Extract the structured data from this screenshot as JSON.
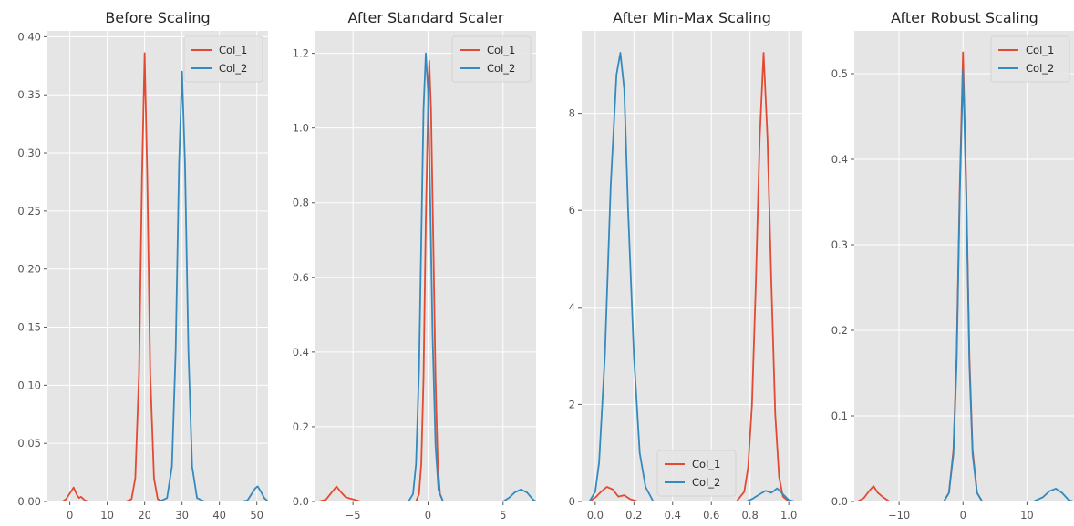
{
  "colors": {
    "col1": "#E24A33",
    "col2": "#348ABD",
    "axes_bg": "#E5E5E5",
    "grid": "#FFFFFF",
    "tick_text": "#555555"
  },
  "chart_data": [
    {
      "type": "line",
      "title": "Before Scaling",
      "xlim": [
        -6,
        53
      ],
      "ylim": [
        0,
        0.405
      ],
      "xticks": [
        0,
        10,
        20,
        30,
        40,
        50
      ],
      "xtick_labels": [
        "0",
        "10",
        "20",
        "30",
        "40",
        "50"
      ],
      "yticks": [
        0,
        0.05,
        0.1,
        0.15,
        0.2,
        0.25,
        0.3,
        0.35,
        0.4
      ],
      "ytick_labels": [
        "0.00",
        "0.05",
        "0.10",
        "0.15",
        "0.20",
        "0.25",
        "0.30",
        "0.35",
        "0.40"
      ],
      "grid": true,
      "legend_position": "top-right",
      "series": [
        {
          "name": "Col_1",
          "color": "#E24A33",
          "points": [
            [
              -2,
              0
            ],
            [
              -1,
              0.002
            ],
            [
              0,
              0.007
            ],
            [
              1,
              0.012
            ],
            [
              2,
              0.005
            ],
            [
              2.5,
              0.003
            ],
            [
              3,
              0.004
            ],
            [
              4,
              0.001
            ],
            [
              5,
              0
            ],
            [
              15,
              0
            ],
            [
              16.5,
              0.002
            ],
            [
              17.5,
              0.02
            ],
            [
              18.5,
              0.11
            ],
            [
              19.3,
              0.28
            ],
            [
              20,
              0.386
            ],
            [
              20.7,
              0.28
            ],
            [
              21.5,
              0.11
            ],
            [
              22.5,
              0.02
            ],
            [
              23.5,
              0.002
            ],
            [
              25,
              0
            ]
          ]
        },
        {
          "name": "Col_2",
          "color": "#348ABD",
          "points": [
            [
              24,
              0
            ],
            [
              26,
              0.003
            ],
            [
              27.3,
              0.03
            ],
            [
              28.3,
              0.13
            ],
            [
              29.2,
              0.29
            ],
            [
              30,
              0.37
            ],
            [
              30.8,
              0.29
            ],
            [
              31.7,
              0.13
            ],
            [
              32.7,
              0.03
            ],
            [
              34,
              0.003
            ],
            [
              36,
              0
            ],
            [
              46,
              0
            ],
            [
              47.5,
              0.001
            ],
            [
              48.5,
              0.006
            ],
            [
              49.5,
              0.011
            ],
            [
              50.2,
              0.013
            ],
            [
              51,
              0.009
            ],
            [
              52,
              0.003
            ],
            [
              53,
              0
            ]
          ]
        }
      ]
    },
    {
      "type": "line",
      "title": "After Standard Scaler",
      "xlim": [
        -7.5,
        7.2
      ],
      "ylim": [
        0,
        1.26
      ],
      "xticks": [
        -5,
        0,
        5
      ],
      "xtick_labels": [
        "−5",
        "0",
        "5"
      ],
      "yticks": [
        0,
        0.2,
        0.4,
        0.6,
        0.8,
        1.0,
        1.2
      ],
      "ytick_labels": [
        "0.0",
        "0.2",
        "0.4",
        "0.6",
        "0.8",
        "1.0",
        "1.2"
      ],
      "grid": true,
      "legend_position": "top-right",
      "series": [
        {
          "name": "Col_1",
          "color": "#E24A33",
          "points": [
            [
              -7.3,
              0
            ],
            [
              -6.8,
              0.005
            ],
            [
              -6.4,
              0.025
            ],
            [
              -6.1,
              0.04
            ],
            [
              -5.8,
              0.025
            ],
            [
              -5.5,
              0.012
            ],
            [
              -5.2,
              0.008
            ],
            [
              -4.9,
              0.005
            ],
            [
              -4.5,
              0
            ],
            [
              -0.8,
              0
            ],
            [
              -0.6,
              0.02
            ],
            [
              -0.45,
              0.1
            ],
            [
              -0.3,
              0.33
            ],
            [
              -0.15,
              0.75
            ],
            [
              0,
              1.05
            ],
            [
              0.08,
              1.18
            ],
            [
              0.2,
              1.05
            ],
            [
              0.35,
              0.7
            ],
            [
              0.5,
              0.33
            ],
            [
              0.65,
              0.1
            ],
            [
              0.8,
              0.02
            ],
            [
              1.0,
              0
            ]
          ]
        },
        {
          "name": "Col_2",
          "color": "#348ABD",
          "points": [
            [
              -1.3,
              0
            ],
            [
              -1.0,
              0.02
            ],
            [
              -0.8,
              0.1
            ],
            [
              -0.6,
              0.35
            ],
            [
              -0.45,
              0.7
            ],
            [
              -0.3,
              1.05
            ],
            [
              -0.15,
              1.2
            ],
            [
              0,
              1.1
            ],
            [
              0.15,
              0.8
            ],
            [
              0.3,
              0.45
            ],
            [
              0.5,
              0.15
            ],
            [
              0.7,
              0.03
            ],
            [
              1.0,
              0
            ],
            [
              5,
              0
            ],
            [
              5.4,
              0.01
            ],
            [
              5.8,
              0.025
            ],
            [
              6.2,
              0.032
            ],
            [
              6.6,
              0.024
            ],
            [
              7.0,
              0.005
            ],
            [
              7.2,
              0
            ]
          ]
        }
      ]
    },
    {
      "type": "line",
      "title": "After Min-Max Scaling",
      "xlim": [
        -0.07,
        1.07
      ],
      "ylim": [
        0,
        9.7
      ],
      "xticks": [
        0.0,
        0.2,
        0.4,
        0.6,
        0.8,
        1.0
      ],
      "xtick_labels": [
        "0.0",
        "0.2",
        "0.4",
        "0.6",
        "0.8",
        "1.0"
      ],
      "yticks": [
        0,
        2,
        4,
        6,
        8
      ],
      "ytick_labels": [
        "0",
        "2",
        "4",
        "6",
        "8"
      ],
      "grid": true,
      "legend_position": "bottom-center",
      "series": [
        {
          "name": "Col_1",
          "color": "#E24A33",
          "points": [
            [
              -0.03,
              0
            ],
            [
              0,
              0.08
            ],
            [
              0.03,
              0.2
            ],
            [
              0.06,
              0.3
            ],
            [
              0.09,
              0.25
            ],
            [
              0.12,
              0.1
            ],
            [
              0.15,
              0.13
            ],
            [
              0.18,
              0.05
            ],
            [
              0.22,
              0
            ],
            [
              0.73,
              0
            ],
            [
              0.77,
              0.2
            ],
            [
              0.79,
              0.7
            ],
            [
              0.81,
              2.0
            ],
            [
              0.83,
              4.5
            ],
            [
              0.85,
              7.5
            ],
            [
              0.87,
              9.25
            ],
            [
              0.89,
              7.5
            ],
            [
              0.91,
              4.5
            ],
            [
              0.93,
              1.8
            ],
            [
              0.95,
              0.5
            ],
            [
              0.97,
              0.1
            ],
            [
              1.0,
              0
            ]
          ]
        },
        {
          "name": "Col_2",
          "color": "#348ABD",
          "points": [
            [
              -0.03,
              0
            ],
            [
              0,
              0.2
            ],
            [
              0.02,
              0.8
            ],
            [
              0.05,
              3.0
            ],
            [
              0.08,
              6.5
            ],
            [
              0.11,
              8.8
            ],
            [
              0.13,
              9.25
            ],
            [
              0.15,
              8.5
            ],
            [
              0.17,
              6.0
            ],
            [
              0.2,
              3.0
            ],
            [
              0.23,
              1.0
            ],
            [
              0.26,
              0.3
            ],
            [
              0.3,
              0
            ],
            [
              0.78,
              0
            ],
            [
              0.81,
              0.05
            ],
            [
              0.85,
              0.15
            ],
            [
              0.88,
              0.22
            ],
            [
              0.91,
              0.18
            ],
            [
              0.94,
              0.27
            ],
            [
              0.97,
              0.15
            ],
            [
              1.0,
              0.03
            ],
            [
              1.03,
              0
            ]
          ]
        }
      ]
    },
    {
      "type": "line",
      "title": "After Robust Scaling",
      "xlim": [
        -17,
        17.5
      ],
      "ylim": [
        0,
        0.55
      ],
      "xticks": [
        -10,
        0,
        10
      ],
      "xtick_labels": [
        "−10",
        "0",
        "10"
      ],
      "yticks": [
        0,
        0.1,
        0.2,
        0.3,
        0.4,
        0.5
      ],
      "ytick_labels": [
        "0.0",
        "0.1",
        "0.2",
        "0.3",
        "0.4",
        "0.5"
      ],
      "grid": true,
      "legend_position": "top-right",
      "series": [
        {
          "name": "Col_1",
          "color": "#E24A33",
          "points": [
            [
              -16.5,
              0
            ],
            [
              -15.5,
              0.004
            ],
            [
              -14.7,
              0.012
            ],
            [
              -14,
              0.018
            ],
            [
              -13.3,
              0.01
            ],
            [
              -12.5,
              0.005
            ],
            [
              -11.5,
              0
            ],
            [
              -3,
              0
            ],
            [
              -2.2,
              0.01
            ],
            [
              -1.5,
              0.06
            ],
            [
              -1,
              0.17
            ],
            [
              -0.5,
              0.37
            ],
            [
              0,
              0.525
            ],
            [
              0.5,
              0.37
            ],
            [
              1,
              0.17
            ],
            [
              1.5,
              0.06
            ],
            [
              2.2,
              0.01
            ],
            [
              3,
              0
            ]
          ]
        },
        {
          "name": "Col_2",
          "color": "#348ABD",
          "points": [
            [
              -3,
              0
            ],
            [
              -2.2,
              0.01
            ],
            [
              -1.5,
              0.055
            ],
            [
              -1,
              0.16
            ],
            [
              -0.5,
              0.36
            ],
            [
              0,
              0.505
            ],
            [
              0.5,
              0.36
            ],
            [
              1,
              0.16
            ],
            [
              1.5,
              0.055
            ],
            [
              2.2,
              0.01
            ],
            [
              3,
              0
            ],
            [
              11,
              0
            ],
            [
              12.5,
              0.005
            ],
            [
              13.5,
              0.012
            ],
            [
              14.5,
              0.015
            ],
            [
              15.5,
              0.01
            ],
            [
              16.5,
              0.002
            ],
            [
              17.2,
              0
            ]
          ]
        }
      ]
    }
  ]
}
